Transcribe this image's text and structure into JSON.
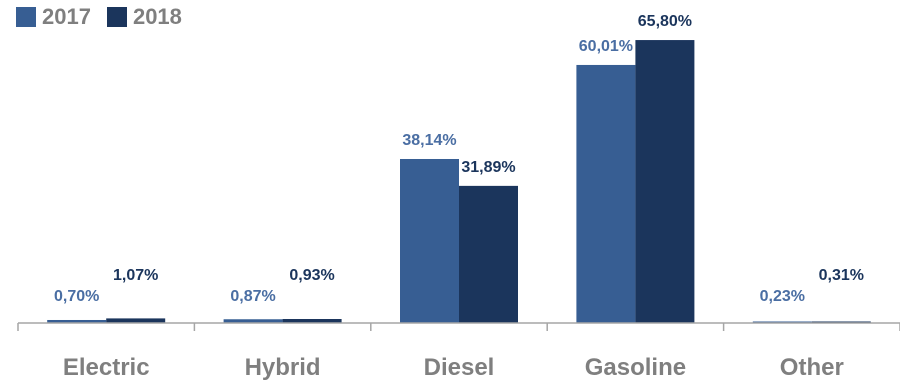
{
  "chart_data": {
    "type": "bar",
    "title": "",
    "xlabel": "",
    "ylabel": "",
    "ylim": [
      0,
      70
    ],
    "grid": false,
    "legend_position": "top-left",
    "categories": [
      "Electric",
      "Hybrid",
      "Diesel",
      "Gasoline",
      "Other"
    ],
    "series": [
      {
        "name": "2017",
        "color": "#375e93",
        "values": [
          0.7,
          0.87,
          38.14,
          60.01,
          0.23
        ],
        "labels": [
          "0,70%",
          "0,87%",
          "38,14%",
          "60,01%",
          "0,23%"
        ]
      },
      {
        "name": "2018",
        "color": "#1b355c",
        "values": [
          1.07,
          0.93,
          31.89,
          65.8,
          0.31
        ],
        "labels": [
          "1,07%",
          "0,93%",
          "31,89%",
          "65,80%",
          "0,31%"
        ]
      }
    ]
  }
}
